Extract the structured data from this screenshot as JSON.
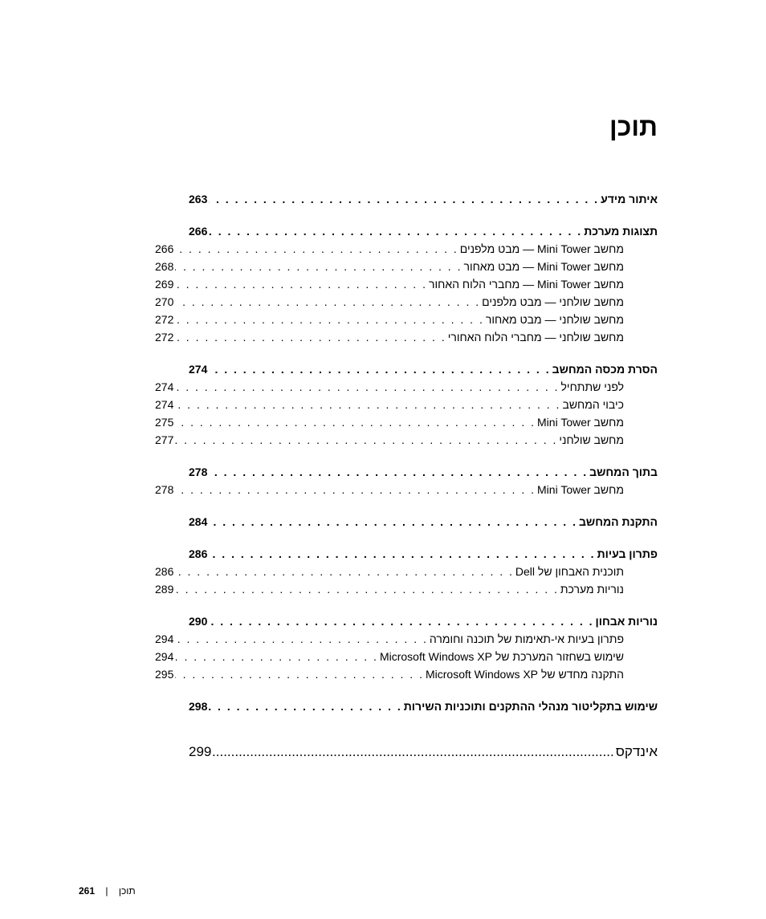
{
  "title": "תוכן",
  "sections": [
    {
      "label": "איתור מידע",
      "page": "263",
      "bold": true,
      "sub": false
    },
    {
      "label": "תצוגות מערכת",
      "page": "266",
      "bold": true,
      "sub": false
    },
    {
      "label": "מחשב Mini Tower — מבט מלפנים",
      "page": "266",
      "bold": false,
      "sub": true
    },
    {
      "label": "מחשב Mini Tower — מבט מאחור",
      "page": "268",
      "bold": false,
      "sub": true
    },
    {
      "label": "מחשב Mini Tower — מחברי הלוח האחור",
      "page": "269",
      "bold": false,
      "sub": true
    },
    {
      "label": "מחשב שולחני — מבט מלפנים",
      "page": "270",
      "bold": false,
      "sub": true
    },
    {
      "label": "מחשב שולחני — מבט מאחור",
      "page": "272",
      "bold": false,
      "sub": true
    },
    {
      "label": "מחשב שולחני — מחברי הלוח האחורי",
      "page": "272",
      "bold": false,
      "sub": true
    },
    {
      "label": "הסרת מכסה המחשב",
      "page": "274",
      "bold": true,
      "sub": false
    },
    {
      "label": "לפני שתתחיל",
      "page": "274",
      "bold": false,
      "sub": true
    },
    {
      "label": "כיבוי המחשב",
      "page": "274",
      "bold": false,
      "sub": true
    },
    {
      "label": "מחשב Mini Tower",
      "page": "275",
      "bold": false,
      "sub": true
    },
    {
      "label": "מחשב שולחני",
      "page": "277",
      "bold": false,
      "sub": true
    },
    {
      "label": "בתוך המחשב",
      "page": "278",
      "bold": true,
      "sub": false
    },
    {
      "label": "מחשב Mini Tower",
      "page": "278",
      "bold": false,
      "sub": true
    },
    {
      "label": "התקנת המחשב",
      "page": "284",
      "bold": true,
      "sub": false
    },
    {
      "label": "פתרון בעיות",
      "page": "286",
      "bold": true,
      "sub": false
    },
    {
      "label": "תוכנית האבחון של Dell",
      "page": "286",
      "bold": false,
      "sub": true
    },
    {
      "label": "נוריות מערכת",
      "page": "289",
      "bold": false,
      "sub": true
    },
    {
      "label": "נוריות אבחון",
      "page": "290",
      "bold": true,
      "sub": false
    },
    {
      "label": "פתרון בעיות אי-תאימות של תוכנה וחומרה",
      "page": "294",
      "bold": false,
      "sub": true
    },
    {
      "label": "שימוש בשחזור המערכת של Microsoft Windows XP",
      "page": "294",
      "bold": false,
      "sub": true
    },
    {
      "label": "התקנה מחדש של Microsoft Windows XP",
      "page": "295",
      "bold": false,
      "sub": true
    },
    {
      "label": "שימוש בתקליטור מנהלי ההתקנים ותוכניות השירות",
      "page": "298",
      "bold": true,
      "sub": false
    }
  ],
  "index": {
    "label": "אינדקס",
    "page": "299"
  },
  "footer": {
    "text": "תוכן",
    "page": "261"
  },
  "dot_fill": ". . . . . . . . . . . . . . . . . . . . . . . . . . . . . . . . . . . . . . . . . . . . . . . . . . . . . . . . . . . . . . . . . . . . . . . . . . . . . . . . . . . . . . . . . . . . . . . . . . . .",
  "dot_fill_wide": "............................................................................................................",
  "colors": {
    "text": "#000000",
    "background": "#ffffff"
  },
  "typography": {
    "title_fontsize": 32,
    "body_fontsize": 14,
    "index_fontsize": 17,
    "footer_fontsize": 12
  },
  "section_breaks_after": [
    0,
    7,
    12,
    14,
    15,
    18,
    22
  ]
}
